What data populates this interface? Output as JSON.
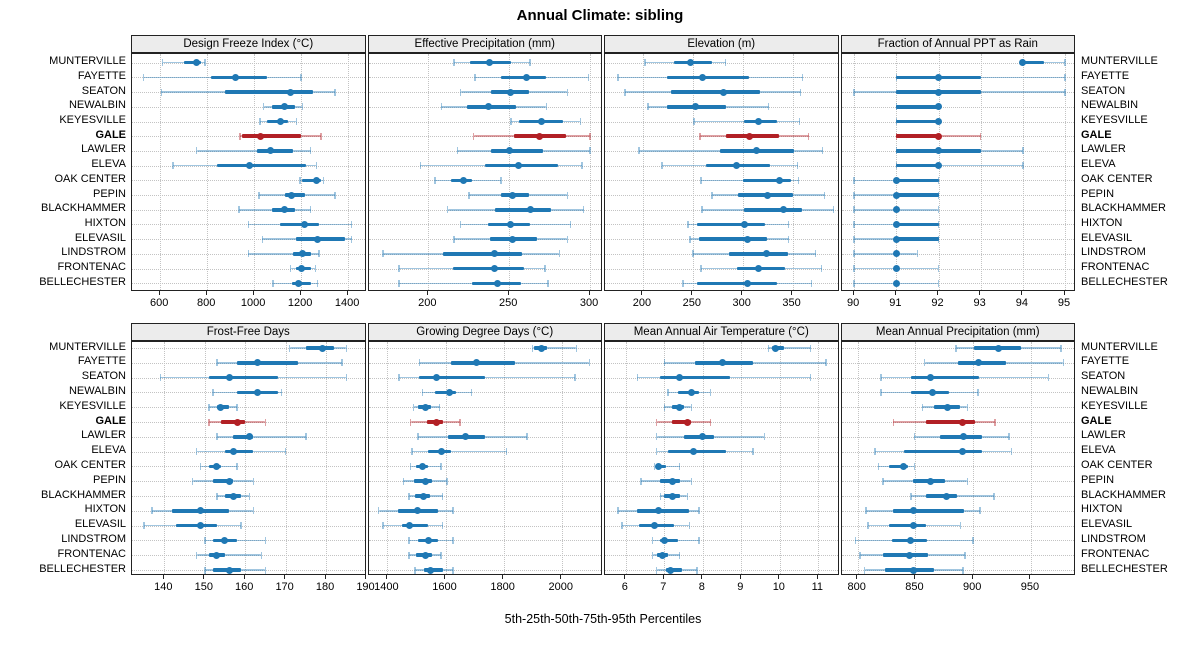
{
  "title": "Annual Climate: sibling",
  "xlabel": "5th-25th-50th-75th-95th Percentiles",
  "percentiles": [
    5,
    25,
    50,
    75,
    95
  ],
  "highlight_site": "GALE",
  "sites": [
    "MUNTERVILLE",
    "FAYETTE",
    "SEATON",
    "NEWALBIN",
    "KEYESVILLE",
    "GALE",
    "LAWLER",
    "ELEVA",
    "OAK CENTER",
    "PEPIN",
    "BLACKHAMMER",
    "HIXTON",
    "ELEVASIL",
    "LINDSTROM",
    "FRONTENAC",
    "BELLECHESTER"
  ],
  "colors": {
    "series": "#1F78B4",
    "series_light": "rgba(31,120,180,0.42)",
    "highlight": "#B22025",
    "highlight_light": "rgba(178,32,37,0.42)",
    "strip_bg": "#ececec",
    "grid": "#c3c3c3",
    "border": "#222222"
  },
  "chart_data": {
    "type": "trellis-percentile-dotplot",
    "layout": "2x4",
    "note": "each row: [p5,p25,p50,p75,p95] per site, sites listed top to bottom",
    "panels": [
      {
        "title": "Design Freeze Index (°C)",
        "ticks": [
          600,
          800,
          1000,
          1200,
          1400
        ],
        "domain": [
          480,
          1478
        ],
        "values": [
          [
            610,
            700,
            755,
            775,
            790
          ],
          [
            530,
            815,
            920,
            1055,
            1200
          ],
          [
            605,
            875,
            1155,
            1250,
            1345
          ],
          [
            1040,
            1075,
            1130,
            1175,
            1205
          ],
          [
            1025,
            1055,
            1110,
            1145,
            1180
          ],
          [
            940,
            950,
            1025,
            1200,
            1285
          ],
          [
            755,
            1010,
            1070,
            1165,
            1240
          ],
          [
            655,
            840,
            980,
            1220,
            1265
          ],
          [
            1195,
            1205,
            1265,
            1285,
            1295
          ],
          [
            1020,
            1130,
            1160,
            1215,
            1345
          ],
          [
            935,
            1075,
            1130,
            1175,
            1240
          ],
          [
            975,
            1110,
            1215,
            1275,
            1415
          ],
          [
            1035,
            1180,
            1270,
            1385,
            1415
          ],
          [
            975,
            1165,
            1205,
            1240,
            1275
          ],
          [
            1155,
            1180,
            1200,
            1240,
            1260
          ],
          [
            1080,
            1160,
            1190,
            1240,
            1270
          ]
        ]
      },
      {
        "title": "Effective Precipitation (mm)",
        "ticks": [
          200,
          250,
          300
        ],
        "domain": [
          163,
          308
        ],
        "values": [
          [
            216,
            226,
            238,
            251,
            263
          ],
          [
            229,
            245,
            261,
            273,
            299
          ],
          [
            220,
            239,
            251,
            262,
            286
          ],
          [
            208,
            224,
            237,
            254,
            273
          ],
          [
            251,
            256,
            270,
            283,
            294
          ],
          [
            228,
            253,
            269,
            285,
            300
          ],
          [
            218,
            239,
            250,
            271,
            300
          ],
          [
            195,
            235,
            256,
            280,
            295
          ],
          [
            204,
            214,
            222,
            227,
            245
          ],
          [
            225,
            245,
            252,
            262,
            286
          ],
          [
            212,
            241,
            263,
            276,
            296
          ],
          [
            220,
            237,
            251,
            263,
            288
          ],
          [
            216,
            238,
            252,
            267,
            286
          ],
          [
            172,
            209,
            241,
            258,
            281
          ],
          [
            182,
            215,
            241,
            259,
            272
          ],
          [
            182,
            227,
            243,
            257,
            274
          ]
        ]
      },
      {
        "title": "Elevation (m)",
        "ticks": [
          200,
          250,
          300,
          350
        ],
        "domain": [
          162,
          397
        ],
        "values": [
          [
            202,
            231,
            248,
            269,
            283
          ],
          [
            175,
            224,
            260,
            306,
            360
          ],
          [
            182,
            228,
            281,
            317,
            358
          ],
          [
            205,
            224,
            253,
            283,
            326
          ],
          [
            251,
            301,
            316,
            334,
            357
          ],
          [
            257,
            283,
            307,
            336,
            366
          ],
          [
            196,
            277,
            314,
            351,
            380
          ],
          [
            219,
            263,
            294,
            327,
            355
          ],
          [
            258,
            300,
            337,
            348,
            356
          ],
          [
            269,
            295,
            325,
            350,
            382
          ],
          [
            259,
            301,
            341,
            359,
            391
          ],
          [
            245,
            254,
            302,
            322,
            346
          ],
          [
            247,
            256,
            305,
            324,
            346
          ],
          [
            250,
            286,
            324,
            345,
            373
          ],
          [
            258,
            294,
            316,
            342,
            379
          ],
          [
            240,
            254,
            305,
            334,
            369
          ]
        ]
      },
      {
        "title": "Fraction of Annual PPT as Rain",
        "ticks": [
          90,
          91,
          92,
          93,
          94,
          95
        ],
        "domain": [
          89.7,
          95.26
        ],
        "values": [
          [
            94,
            94,
            94,
            94.5,
            95
          ],
          [
            91,
            91,
            92,
            93,
            95
          ],
          [
            90,
            91,
            92,
            93,
            95
          ],
          [
            91,
            91,
            92,
            92,
            92
          ],
          [
            91,
            91,
            92,
            92,
            92
          ],
          [
            91,
            91,
            92,
            92,
            93
          ],
          [
            91,
            91,
            92,
            93,
            94
          ],
          [
            91,
            91,
            92,
            92,
            94
          ],
          [
            90,
            91,
            91,
            92,
            92
          ],
          [
            90,
            91,
            91,
            92,
            92
          ],
          [
            90,
            91,
            91,
            91,
            92
          ],
          [
            90,
            91,
            91,
            92,
            92
          ],
          [
            90,
            91,
            91,
            92,
            92
          ],
          [
            90,
            91,
            91,
            91,
            91.5
          ],
          [
            90,
            91,
            91,
            91,
            92
          ],
          [
            90,
            91,
            91,
            91,
            92
          ]
        ]
      },
      {
        "title": "Frost-Free Days",
        "ticks": [
          140,
          150,
          160,
          170,
          180,
          190
        ],
        "domain": [
          132,
          190
        ],
        "values": [
          [
            171,
            175,
            179,
            182,
            185
          ],
          [
            153,
            158,
            163,
            173,
            184
          ],
          [
            139,
            151,
            156,
            168,
            185
          ],
          [
            152,
            158,
            163,
            168,
            169
          ],
          [
            151,
            153,
            154,
            156,
            158
          ],
          [
            151,
            154,
            158,
            160,
            165
          ],
          [
            153,
            157,
            161,
            162,
            175
          ],
          [
            148,
            155,
            157,
            162,
            170
          ],
          [
            149,
            151,
            153,
            154,
            158
          ],
          [
            147,
            152,
            156,
            157,
            162
          ],
          [
            153,
            155,
            157,
            159,
            161
          ],
          [
            137,
            142,
            149,
            156,
            162
          ],
          [
            135,
            143,
            149,
            153,
            159
          ],
          [
            150,
            152,
            155,
            158,
            165
          ],
          [
            148,
            151,
            153,
            155,
            164
          ],
          [
            150,
            152,
            156,
            159,
            165
          ]
        ]
      },
      {
        "title": "Growing Degree Days (°C)",
        "ticks": [
          1400,
          1600,
          1800,
          2000
        ],
        "domain": [
          1335,
          2142
        ],
        "values": [
          [
            1900,
            1905,
            1930,
            1950,
            2050
          ],
          [
            1510,
            1620,
            1705,
            1840,
            2095
          ],
          [
            1440,
            1510,
            1570,
            1735,
            2045
          ],
          [
            1520,
            1565,
            1615,
            1635,
            1690
          ],
          [
            1490,
            1505,
            1530,
            1550,
            1580
          ],
          [
            1480,
            1535,
            1570,
            1590,
            1650
          ],
          [
            1505,
            1610,
            1670,
            1735,
            1880
          ],
          [
            1485,
            1540,
            1585,
            1620,
            1810
          ],
          [
            1480,
            1500,
            1520,
            1540,
            1585
          ],
          [
            1455,
            1490,
            1530,
            1555,
            1605
          ],
          [
            1475,
            1495,
            1525,
            1545,
            1590
          ],
          [
            1370,
            1435,
            1505,
            1575,
            1625
          ],
          [
            1385,
            1450,
            1475,
            1540,
            1590
          ],
          [
            1475,
            1505,
            1540,
            1575,
            1625
          ],
          [
            1475,
            1500,
            1530,
            1555,
            1585
          ],
          [
            1495,
            1525,
            1550,
            1590,
            1625
          ]
        ]
      },
      {
        "title": "Mean Annual Air Temperature (°C)",
        "ticks": [
          6,
          7,
          8,
          9,
          10,
          11
        ],
        "domain": [
          5.46,
          11.55
        ],
        "values": [
          [
            9.7,
            9.8,
            9.9,
            10.1,
            10.8
          ],
          [
            7.0,
            7.8,
            8.5,
            9.3,
            11.2
          ],
          [
            6.3,
            6.9,
            7.4,
            8.7,
            10.8
          ],
          [
            7.1,
            7.35,
            7.7,
            7.9,
            8.2
          ],
          [
            7.0,
            7.2,
            7.4,
            7.5,
            7.7
          ],
          [
            6.8,
            7.2,
            7.6,
            7.7,
            8.2
          ],
          [
            6.8,
            7.5,
            8.0,
            8.3,
            9.6
          ],
          [
            6.8,
            7.1,
            7.75,
            8.6,
            9.3
          ],
          [
            6.75,
            6.8,
            6.85,
            7.05,
            7.4
          ],
          [
            6.4,
            6.9,
            7.2,
            7.4,
            7.7
          ],
          [
            6.9,
            7.0,
            7.2,
            7.4,
            7.6
          ],
          [
            5.8,
            6.3,
            6.85,
            7.65,
            7.9
          ],
          [
            5.9,
            6.35,
            6.75,
            7.25,
            7.65
          ],
          [
            6.7,
            6.9,
            7.0,
            7.35,
            7.9
          ],
          [
            6.7,
            6.8,
            6.95,
            7.1,
            7.4
          ],
          [
            6.8,
            7.05,
            7.15,
            7.45,
            7.85
          ]
        ]
      },
      {
        "title": "Mean Annual Precipitation (mm)",
        "ticks": [
          800,
          850,
          900,
          950
        ],
        "domain": [
          786,
          989
        ],
        "values": [
          [
            885,
            901,
            922,
            941,
            976
          ],
          [
            858,
            887,
            905,
            928,
            978
          ],
          [
            820,
            846,
            863,
            905,
            965
          ],
          [
            820,
            846,
            865,
            879,
            904
          ],
          [
            856,
            866,
            878,
            889,
            895
          ],
          [
            831,
            859,
            891,
            902,
            919
          ],
          [
            849,
            871,
            892,
            908,
            931
          ],
          [
            815,
            840,
            891,
            908,
            933
          ],
          [
            818,
            827,
            840,
            844,
            849
          ],
          [
            822,
            848,
            863,
            876,
            895
          ],
          [
            846,
            859,
            877,
            886,
            918
          ],
          [
            807,
            831,
            848,
            892,
            906
          ],
          [
            809,
            827,
            848,
            859,
            889
          ],
          [
            798,
            830,
            846,
            860,
            900
          ],
          [
            802,
            822,
            845,
            861,
            893
          ],
          [
            806,
            824,
            848,
            866,
            891
          ]
        ]
      }
    ]
  }
}
